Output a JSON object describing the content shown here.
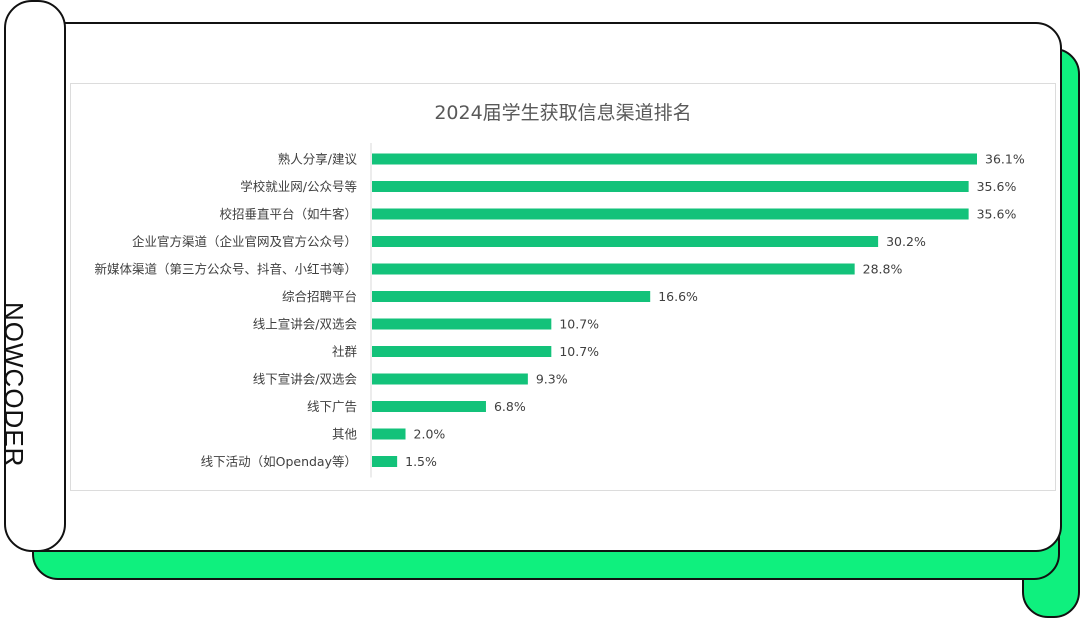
{
  "brand": "NOWCODER",
  "colors": {
    "accent": "#0ff07e",
    "bar": "#13c27a"
  },
  "chart_data": {
    "type": "bar",
    "orientation": "horizontal",
    "title": "2024届学生获取信息渠道排名",
    "categories": [
      "熟人分享/建议",
      "学校就业网/公众号等",
      "校招垂直平台（如牛客）",
      "企业官方渠道（企业官网及官方公众号）",
      "新媒体渠道（第三方公众号、抖音、小红书等）",
      "综合招聘平台",
      "线上宣讲会/双选会",
      "社群",
      "线下宣讲会/双选会",
      "线下广告",
      "其他",
      "线下活动（如Openday等）"
    ],
    "values": [
      36.1,
      35.6,
      35.6,
      30.2,
      28.8,
      16.6,
      10.7,
      10.7,
      9.3,
      6.8,
      2.0,
      1.5
    ],
    "labels": [
      "36.1%",
      "35.6%",
      "35.6%",
      "30.2%",
      "28.8%",
      "16.6%",
      "10.7%",
      "10.7%",
      "9.3%",
      "6.8%",
      "2.0%",
      "1.5%"
    ],
    "xlim": [
      0,
      36.1
    ],
    "grid": false,
    "legend": "none"
  }
}
